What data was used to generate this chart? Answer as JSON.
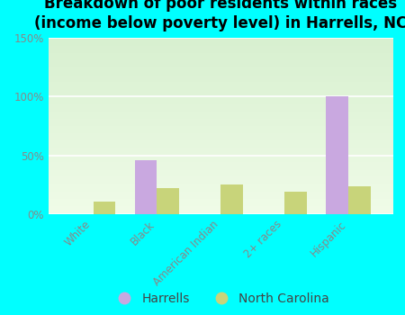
{
  "title": "Breakdown of poor residents within races\n(income below poverty level) in Harrells, NC",
  "categories": [
    "White",
    "Black",
    "American Indian",
    "2+ races",
    "Hispanic"
  ],
  "harrells_values": [
    0,
    46,
    0,
    0,
    100
  ],
  "nc_values": [
    11,
    22,
    25,
    19,
    24
  ],
  "harrells_color": "#c9a8e0",
  "nc_color": "#c8d47a",
  "bar_width": 0.35,
  "ylim": [
    0,
    150
  ],
  "yticks": [
    0,
    50,
    100,
    150
  ],
  "ytick_labels": [
    "0%",
    "50%",
    "100%",
    "150%"
  ],
  "legend_harrells": "Harrells",
  "legend_nc": "North Carolina",
  "outer_bg": "#00ffff",
  "plot_bg_top": "#d8f0d0",
  "plot_bg_bottom": "#f0fce8",
  "title_fontsize": 12,
  "tick_fontsize": 8.5,
  "legend_fontsize": 10,
  "grid_color": "#ffffff",
  "tick_color": "#888888"
}
